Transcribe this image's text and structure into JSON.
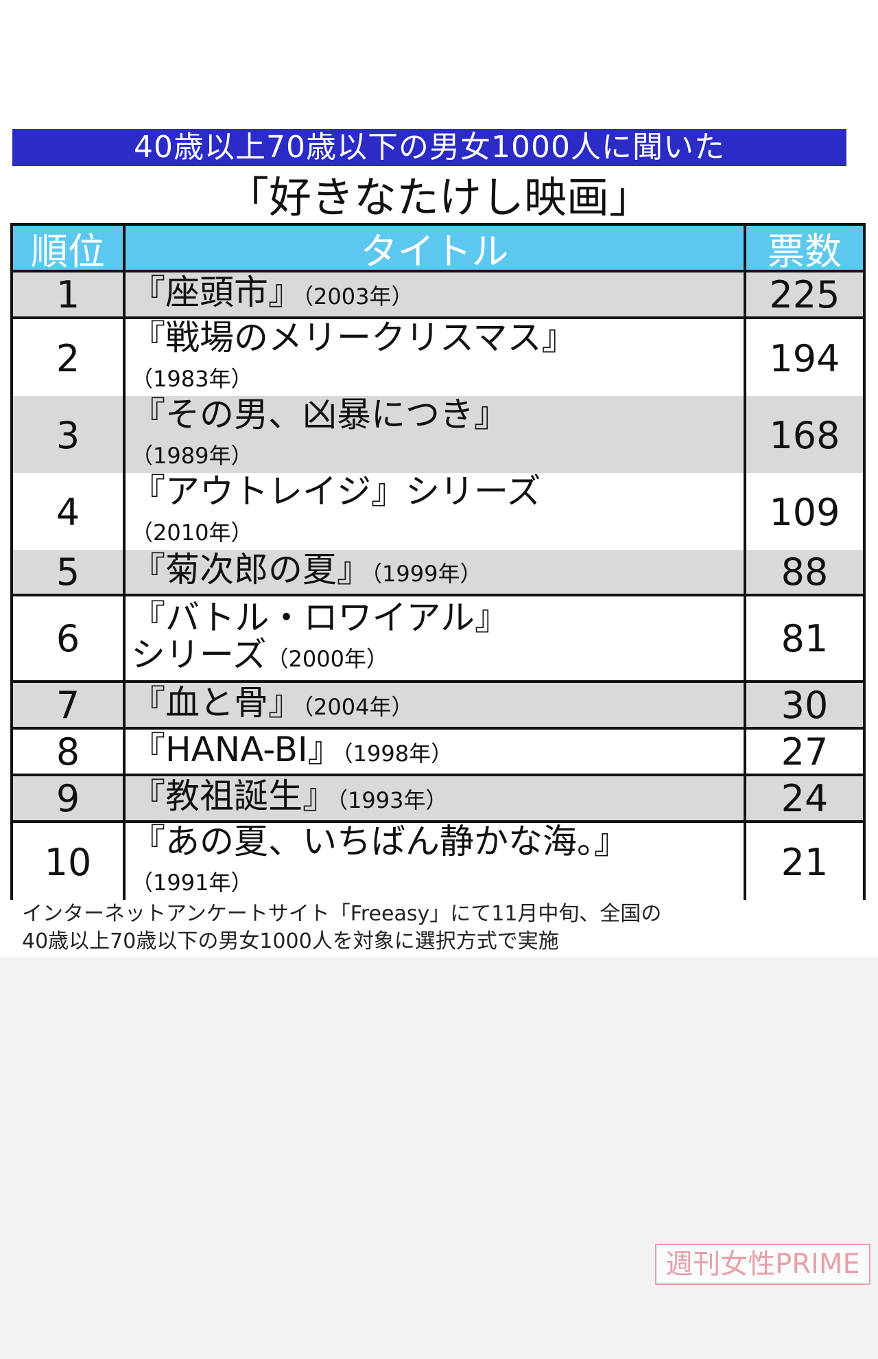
{
  "header": {
    "subtitle": "40歳以上70歳以下の男女1000人に聞いた",
    "title": "「好きなたけし映画」"
  },
  "table": {
    "columns": [
      "順位",
      "タイトル",
      "票数"
    ],
    "rows": [
      {
        "rank": 1,
        "title_lines": [
          "『座頭市』"
        ],
        "year": "（2003年）",
        "votes": 225
      },
      {
        "rank": 2,
        "title_lines": [
          "『戦場のメリークリスマス』"
        ],
        "year": "（1983年）",
        "votes": 194
      },
      {
        "rank": 3,
        "title_lines": [
          "『その男、凶暴につき』"
        ],
        "year": "（1989年）",
        "votes": 168
      },
      {
        "rank": 4,
        "title_lines": [
          "『アウトレイジ』シリーズ"
        ],
        "year": "（2010年）",
        "votes": 109
      },
      {
        "rank": 5,
        "title_lines": [
          "『菊次郎の夏』"
        ],
        "year": "（1999年）",
        "votes": 88
      },
      {
        "rank": 6,
        "title_lines": [
          "『バトル・ロワイアル』",
          "シリーズ"
        ],
        "year": "（2000年）",
        "votes": 81
      },
      {
        "rank": 7,
        "title_lines": [
          "『血と骨』"
        ],
        "year": "（2004年）",
        "votes": 30
      },
      {
        "rank": 8,
        "title_lines": [
          "『HANA-BI』"
        ],
        "year": "（1998年）",
        "votes": 27
      },
      {
        "rank": 9,
        "title_lines": [
          "『教祖誕生』"
        ],
        "year": "（1993年）",
        "votes": 24
      },
      {
        "rank": 10,
        "title_lines": [
          "『あの夏、いちばん静かな海。』"
        ],
        "year": "（1991年）",
        "votes": 21
      }
    ]
  },
  "footnote": [
    "インターネットアンケートサイト「Freeasy」にて11月中旬、全国の",
    "40歳以上70歳以下の男女1000人を対象に選択方式で実施"
  ],
  "watermark": "週刊女性PRIME"
}
